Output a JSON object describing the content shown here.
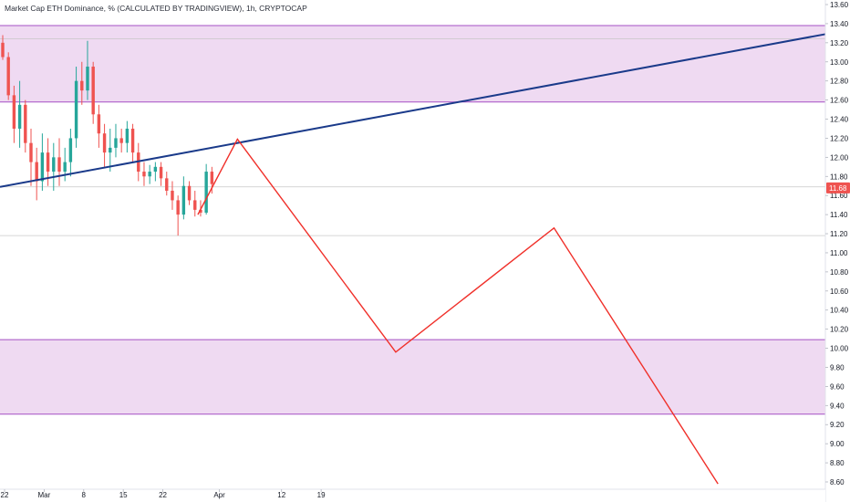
{
  "header": {
    "title": "Market Cap ETH Dominance, % (CALCULATED BY TRADINGVIEW), 1h, CRYPTOCAP"
  },
  "colors": {
    "zone_fill": "#ecd3f0",
    "zone_border": "#a550c4",
    "trendline": "#1a3a8a",
    "projection": "#f0302a",
    "candle_up": "#26a69a",
    "candle_down": "#ef5350",
    "price_badge": "#ef5350",
    "axis_text": "#131722"
  },
  "chart_data": {
    "type": "candlestick",
    "title": "Market Cap ETH Dominance, % (CALCULATED BY TRADINGVIEW), 1h, CRYPTOCAP",
    "y_ticks": [
      "8.60",
      "8.80",
      "9.00",
      "9.20",
      "9.40",
      "9.60",
      "9.80",
      "10.00",
      "10.20",
      "10.40",
      "10.60",
      "10.80",
      "11.00",
      "11.20",
      "11.40",
      "11.60",
      "11.80",
      "12.00",
      "12.20",
      "12.40",
      "12.60",
      "12.80",
      "13.00",
      "13.20",
      "13.40",
      "13.60"
    ],
    "ylim": [
      8.55,
      13.65
    ],
    "x_ticks": [
      {
        "label": "22",
        "day": 0
      },
      {
        "label": "Mar",
        "day": 7
      },
      {
        "label": "8",
        "day": 14
      },
      {
        "label": "15",
        "day": 21
      },
      {
        "label": "22",
        "day": 28
      },
      {
        "label": "Apr",
        "day": 38
      },
      {
        "label": "12",
        "day": 49
      },
      {
        "label": "19",
        "day": 56
      }
    ],
    "xlim": [
      0,
      146
    ],
    "current_price": "11.68",
    "zones": [
      {
        "top": 13.38,
        "bottom": 12.58
      },
      {
        "top": 10.09,
        "bottom": 9.31
      }
    ],
    "horizontal_lines": [
      13.24,
      11.69,
      11.18
    ],
    "trendline": {
      "points": [
        [
          0,
          11.69
        ],
        [
          146,
          13.29
        ]
      ]
    },
    "projection_path": [
      [
        35,
        11.4
      ],
      [
        42,
        12.19
      ],
      [
        70,
        9.96
      ],
      [
        98,
        11.26
      ],
      [
        127,
        8.58
      ]
    ],
    "price_series": [
      {
        "day": 0,
        "open": 13.2,
        "high": 13.28,
        "low": 13.02,
        "close": 13.05
      },
      {
        "day": 1,
        "open": 13.05,
        "high": 13.1,
        "low": 12.6,
        "close": 12.65
      },
      {
        "day": 2,
        "open": 12.65,
        "high": 12.75,
        "low": 12.15,
        "close": 12.3
      },
      {
        "day": 3,
        "open": 12.3,
        "high": 12.8,
        "low": 12.1,
        "close": 12.55
      },
      {
        "day": 4,
        "open": 12.55,
        "high": 12.6,
        "low": 12.05,
        "close": 12.15
      },
      {
        "day": 5,
        "open": 12.15,
        "high": 12.3,
        "low": 11.7,
        "close": 11.95
      },
      {
        "day": 6,
        "open": 11.95,
        "high": 12.1,
        "low": 11.55,
        "close": 11.75
      },
      {
        "day": 7,
        "open": 11.75,
        "high": 12.25,
        "low": 11.65,
        "close": 12.05
      },
      {
        "day": 8,
        "open": 12.05,
        "high": 12.2,
        "low": 11.7,
        "close": 11.85
      },
      {
        "day": 9,
        "open": 11.85,
        "high": 12.15,
        "low": 11.65,
        "close": 12.0
      },
      {
        "day": 10,
        "open": 12.0,
        "high": 12.2,
        "low": 11.7,
        "close": 11.85
      },
      {
        "day": 11,
        "open": 11.85,
        "high": 12.1,
        "low": 11.75,
        "close": 11.95
      },
      {
        "day": 12,
        "open": 11.95,
        "high": 12.3,
        "low": 11.8,
        "close": 12.2
      },
      {
        "day": 13,
        "open": 12.2,
        "high": 12.95,
        "low": 12.1,
        "close": 12.8
      },
      {
        "day": 14,
        "open": 12.8,
        "high": 13.0,
        "low": 12.55,
        "close": 12.7
      },
      {
        "day": 15,
        "open": 12.7,
        "high": 13.22,
        "low": 12.6,
        "close": 12.95
      },
      {
        "day": 16,
        "open": 12.95,
        "high": 13.0,
        "low": 12.35,
        "close": 12.45
      },
      {
        "day": 17,
        "open": 12.45,
        "high": 12.55,
        "low": 12.1,
        "close": 12.25
      },
      {
        "day": 18,
        "open": 12.25,
        "high": 12.35,
        "low": 11.9,
        "close": 12.05
      },
      {
        "day": 19,
        "open": 12.05,
        "high": 12.3,
        "low": 11.85,
        "close": 12.1
      },
      {
        "day": 20,
        "open": 12.1,
        "high": 12.35,
        "low": 12.0,
        "close": 12.2
      },
      {
        "day": 21,
        "open": 12.2,
        "high": 12.3,
        "low": 12.05,
        "close": 12.15
      },
      {
        "day": 22,
        "open": 12.15,
        "high": 12.38,
        "low": 12.05,
        "close": 12.3
      },
      {
        "day": 23,
        "open": 12.3,
        "high": 12.35,
        "low": 11.95,
        "close": 12.05
      },
      {
        "day": 24,
        "open": 12.05,
        "high": 12.15,
        "low": 11.75,
        "close": 11.85
      },
      {
        "day": 25,
        "open": 11.85,
        "high": 11.95,
        "low": 11.7,
        "close": 11.8
      },
      {
        "day": 26,
        "open": 11.8,
        "high": 11.92,
        "low": 11.72,
        "close": 11.85
      },
      {
        "day": 27,
        "open": 11.85,
        "high": 11.95,
        "low": 11.75,
        "close": 11.9
      },
      {
        "day": 28,
        "open": 11.9,
        "high": 11.95,
        "low": 11.7,
        "close": 11.78
      },
      {
        "day": 29,
        "open": 11.78,
        "high": 11.85,
        "low": 11.6,
        "close": 11.65
      },
      {
        "day": 30,
        "open": 11.65,
        "high": 11.75,
        "low": 11.45,
        "close": 11.55
      },
      {
        "day": 31,
        "open": 11.55,
        "high": 11.6,
        "low": 11.18,
        "close": 11.4
      },
      {
        "day": 32,
        "open": 11.4,
        "high": 11.8,
        "low": 11.35,
        "close": 11.7
      },
      {
        "day": 33,
        "open": 11.7,
        "high": 11.75,
        "low": 11.5,
        "close": 11.55
      },
      {
        "day": 34,
        "open": 11.55,
        "high": 11.65,
        "low": 11.38,
        "close": 11.45
      },
      {
        "day": 35,
        "open": 11.45,
        "high": 11.55,
        "low": 11.38,
        "close": 11.42
      },
      {
        "day": 36,
        "open": 11.42,
        "high": 11.93,
        "low": 11.4,
        "close": 11.85
      },
      {
        "day": 37,
        "open": 11.85,
        "high": 11.9,
        "low": 11.62,
        "close": 11.72
      }
    ]
  }
}
